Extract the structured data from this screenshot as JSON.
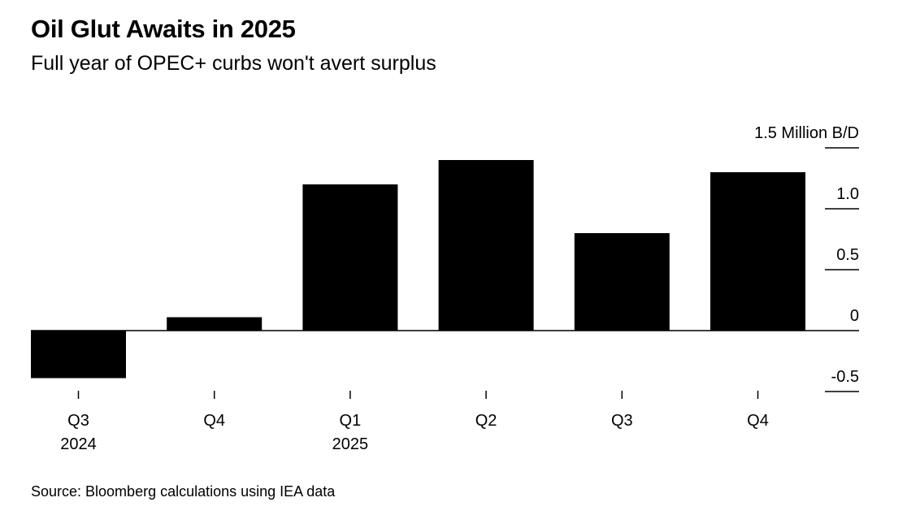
{
  "chart_data": {
    "type": "bar",
    "title": "Oil Glut Awaits in 2025",
    "subtitle": "Full year of OPEC+ curbs won't avert surplus",
    "source": "Source: Bloomberg calculations using IEA data",
    "categories": [
      "Q3",
      "Q4",
      "Q1",
      "Q2",
      "Q3",
      "Q4"
    ],
    "category_years": [
      "2024",
      "",
      "2025",
      "",
      "",
      ""
    ],
    "values": [
      -0.39,
      0.11,
      1.2,
      1.4,
      0.8,
      1.3
    ],
    "ylabel": "Million B/D",
    "yticks": [
      1.5,
      1.0,
      0.5,
      0,
      -0.5
    ],
    "ytick_labels": [
      "1.5 Million B/D",
      "1.0",
      "0.5",
      "0",
      "-0.5"
    ],
    "ylim": [
      -0.5,
      1.5
    ],
    "grid": false,
    "legend": "none",
    "bar_color": "#000000"
  }
}
